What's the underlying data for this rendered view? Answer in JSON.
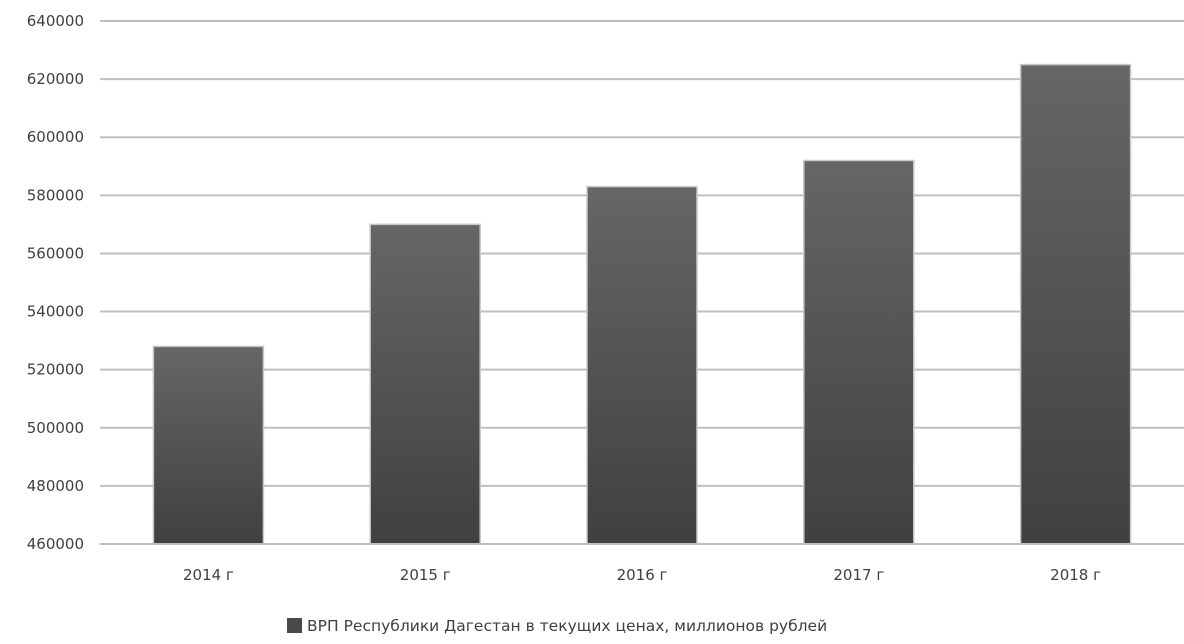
{
  "chart_data": {
    "type": "bar",
    "categories": [
      "2014 г",
      "2015 г",
      "2016 г",
      "2017 г",
      "2018 г"
    ],
    "series": [
      {
        "name": "ВРП Республики Дагестан в текущих ценах, миллионов рублей",
        "values": [
          528000,
          570000,
          583000,
          592000,
          625000
        ]
      }
    ],
    "y_ticks": [
      "460000",
      "480000",
      "500000",
      "520000",
      "540000",
      "560000",
      "580000",
      "600000",
      "620000",
      "640000"
    ],
    "ylim": [
      460000,
      640000
    ],
    "grid": true,
    "legend_position": "bottom",
    "title": "",
    "xlabel": "",
    "ylabel": ""
  },
  "colors": {
    "bar_top": "#666666",
    "bar_bottom": "#404040",
    "bar_edge": "#c8c8c8",
    "gridline": "#bfbfbf",
    "text": "#404040",
    "legend_swatch": "#4a4a4a"
  }
}
